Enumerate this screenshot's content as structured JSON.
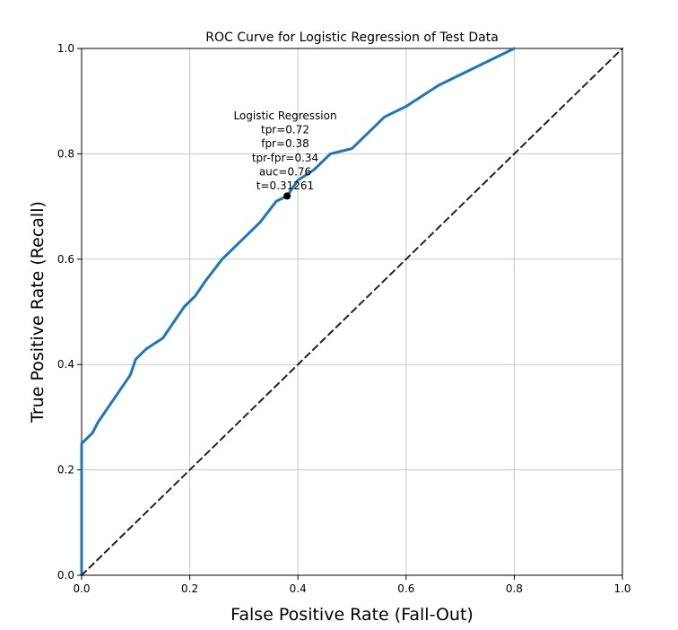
{
  "chart_data": {
    "type": "line",
    "title": "ROC Curve for Logistic Regression of Test Data",
    "xlabel": "False Positive Rate (Fall-Out)",
    "ylabel": "True Positive Rate (Recall)",
    "xlim": [
      0,
      1
    ],
    "ylim": [
      0,
      1
    ],
    "grid": true,
    "x_ticks": [
      0.0,
      0.2,
      0.4,
      0.6,
      0.8,
      1.0
    ],
    "y_ticks": [
      0.0,
      0.2,
      0.4,
      0.6,
      0.8,
      1.0
    ],
    "x_tick_labels": [
      "0.0",
      "0.2",
      "0.4",
      "0.6",
      "0.8",
      "1.0"
    ],
    "y_tick_labels": [
      "0.0",
      "0.2",
      "0.4",
      "0.6",
      "0.8",
      "1.0"
    ],
    "colors": {
      "roc_curve": "#1f77b4",
      "baseline": "#222222",
      "grid": "#c8c8c8",
      "marker": "#000000"
    },
    "series": [
      {
        "style": "solid",
        "x": [
          0.0,
          0.0,
          0.0,
          0.005,
          0.02,
          0.03,
          0.05,
          0.07,
          0.09,
          0.1,
          0.12,
          0.15,
          0.17,
          0.19,
          0.21,
          0.23,
          0.26,
          0.28,
          0.3,
          0.33,
          0.36,
          0.38,
          0.4,
          0.43,
          0.46,
          0.5,
          0.53,
          0.56,
          0.6,
          0.63,
          0.66,
          0.7,
          0.74,
          0.78,
          0.8
        ],
        "y": [
          0.0,
          0.2,
          0.25,
          0.255,
          0.27,
          0.29,
          0.32,
          0.35,
          0.38,
          0.41,
          0.43,
          0.45,
          0.48,
          0.51,
          0.53,
          0.56,
          0.6,
          0.62,
          0.64,
          0.67,
          0.71,
          0.72,
          0.75,
          0.77,
          0.8,
          0.81,
          0.84,
          0.87,
          0.89,
          0.91,
          0.93,
          0.95,
          0.97,
          0.99,
          1.0
        ]
      },
      {
        "style": "dashed",
        "x": [
          0,
          1
        ],
        "y": [
          0,
          1
        ]
      }
    ],
    "marker": {
      "x": 0.38,
      "y": 0.72
    },
    "annotation": [
      "Logistic Regression",
      "tpr=0.72",
      "fpr=0.38",
      "tpr-fpr=0.34",
      "auc=0.76",
      "t=0.31261"
    ]
  }
}
